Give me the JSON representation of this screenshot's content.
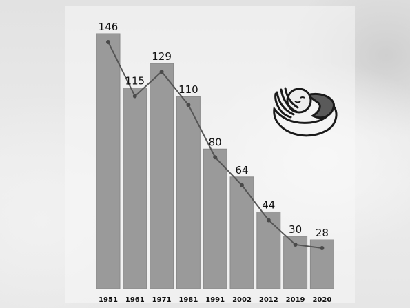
{
  "chart_data": {
    "type": "bar",
    "categories": [
      "1951",
      "1961",
      "1971",
      "1981",
      "1991",
      "2002",
      "2012",
      "2019",
      "2020"
    ],
    "values": [
      146,
      115,
      129,
      110,
      80,
      64,
      44,
      30,
      28
    ],
    "line_overlay": true,
    "title": "",
    "xlabel": "",
    "ylabel": "",
    "ylim": [
      0,
      150
    ],
    "grid": false,
    "legend": "none",
    "colors": {
      "bar": "#9a9a9a",
      "bar_edge": "#8a8a8a",
      "line": "#555555",
      "marker": "#4a4a4a"
    }
  },
  "logo": {
    "icon": "baby-in-hands-icon"
  }
}
